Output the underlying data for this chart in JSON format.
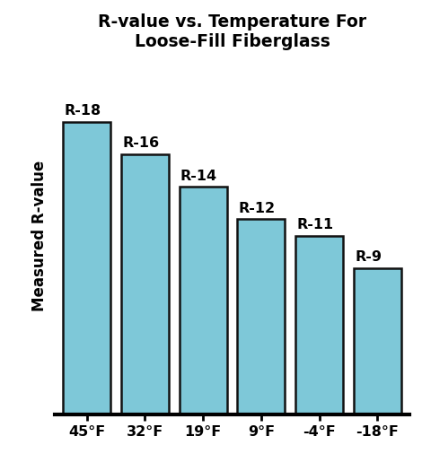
{
  "title": "R-value vs. Temperature For\nLoose-Fill Fiberglass",
  "ylabel": "Measured R-value",
  "categories": [
    "45°F",
    "32°F",
    "19°F",
    "9°F",
    "-4°F",
    "-18°F"
  ],
  "values": [
    18,
    16,
    14,
    12,
    11,
    9
  ],
  "bar_labels": [
    "R-18",
    "R-16",
    "R-14",
    "R-12",
    "R-11",
    "R-9"
  ],
  "bar_color": "#7EC8D8",
  "bar_edge_color": "#111111",
  "background_color": "#ffffff",
  "title_fontsize": 13.5,
  "label_fontsize": 11.5,
  "bar_label_fontsize": 11.5,
  "ylabel_fontsize": 12,
  "ylim": [
    0,
    22
  ],
  "bar_width": 0.82
}
